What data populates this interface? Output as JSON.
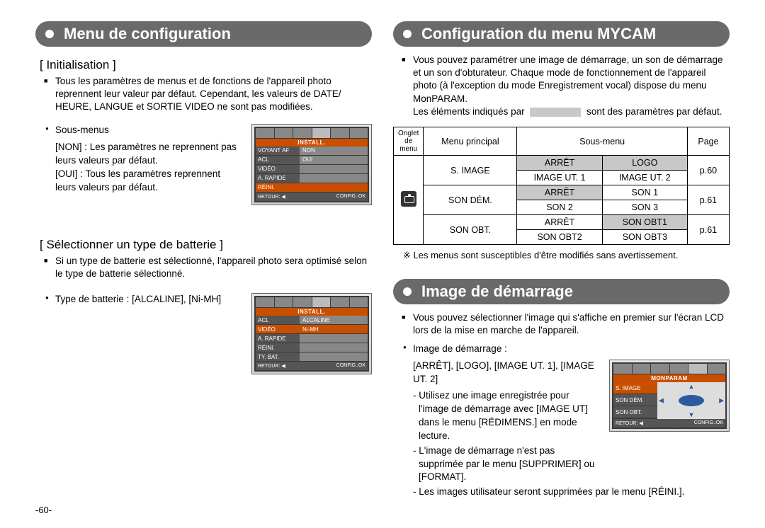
{
  "pageNumber": "-60-",
  "left": {
    "header": "Menu de configuration",
    "section1": {
      "title": "[ Initialisation ]",
      "intro": "Tous les paramètres de menus et de fonctions de l'appareil photo reprennent leur valeur par défaut. Cependant, les valeurs de DATE/ HEURE, LANGUE et SORTIE VIDEO ne sont pas modifiées.",
      "subLabel": "Sous-menus",
      "opt1": "[NON] : Les paramètres ne reprennent pas leurs valeurs par défaut.",
      "opt2": "[OUI]  : Tous les paramètres reprennent leurs valeurs par défaut.",
      "lcd": {
        "title": "INSTALL.",
        "rows": [
          {
            "label": "VOYANT AF",
            "val": "NON",
            "hl": false
          },
          {
            "label": "ACL",
            "val": "OUI",
            "hl": false
          },
          {
            "label": "VIDÉO",
            "val": "",
            "hl": false
          },
          {
            "label": "A. RAPIDE",
            "val": "",
            "hl": false
          },
          {
            "label": "RÉINI.",
            "val": "",
            "hl": true
          }
        ],
        "footerL": "RETOUR: ◀",
        "footerR": "CONFIG.:OK"
      }
    },
    "section2": {
      "title": "[ Sélectionner un type de batterie ]",
      "intro": "Si un type de batterie est sélectionné, l'appareil photo sera optimisé selon le type de batterie sélectionné.",
      "bullet": "Type de batterie : [ALCALINE], [Ni-MH]",
      "lcd": {
        "title": "INSTALL.",
        "rows": [
          {
            "label": "ACL",
            "val": "ALCALINE",
            "hl": false
          },
          {
            "label": "VIDÉO",
            "val": "Ni-MH",
            "hl": true
          },
          {
            "label": "A. RAPIDE",
            "val": "",
            "hl": false
          },
          {
            "label": "RÉINI.",
            "val": "",
            "hl": false
          },
          {
            "label": "TY. BAT.",
            "val": "",
            "hl": false
          }
        ],
        "footerL": "RETOUR: ◀",
        "footerR": "CONFIG.:OK"
      }
    }
  },
  "right": {
    "header1": "Configuration du menu MYCAM",
    "intro1a": "Vous pouvez paramétrer une image de démarrage, un son de démarrage et un son d'obturateur. Chaque mode de fonctionnement de l'appareil photo (à l'exception du mode Enregistrement vocal) dispose du menu MonPARAM.",
    "intro1b_before": "Les éléments indiqués par",
    "intro1b_after": "sont des paramètres par défaut.",
    "table": {
      "headers": {
        "c1": "Onglet de menu",
        "c2": "Menu principal",
        "c3": "Sous-menu",
        "c4": "Page"
      },
      "rows": [
        {
          "main": "S. IMAGE",
          "cells": [
            {
              "t": "ARRÊT",
              "s": true
            },
            {
              "t": "LOGO",
              "s": true
            }
          ],
          "page": "p.60"
        },
        {
          "main": "",
          "cells": [
            {
              "t": "IMAGE UT. 1",
              "s": false
            },
            {
              "t": "IMAGE UT. 2",
              "s": false
            }
          ],
          "page": ""
        },
        {
          "main": "SON DÉM.",
          "cells": [
            {
              "t": "ARRÊT",
              "s": true
            },
            {
              "t": "SON 1",
              "s": false
            }
          ],
          "page": "p.61"
        },
        {
          "main": "",
          "cells": [
            {
              "t": "SON 2",
              "s": false
            },
            {
              "t": "SON 3",
              "s": false
            }
          ],
          "page": ""
        },
        {
          "main": "SON OBT.",
          "cells": [
            {
              "t": "ARRÊT",
              "s": false
            },
            {
              "t": "SON OBT1",
              "s": true
            }
          ],
          "page": "p.61"
        },
        {
          "main": "",
          "cells": [
            {
              "t": "SON OBT2",
              "s": false
            },
            {
              "t": "SON OBT3",
              "s": false
            }
          ],
          "page": ""
        }
      ]
    },
    "note1": "※ Les menus sont susceptibles d'être modifiés sans avertissement.",
    "header2": "Image de démarrage",
    "intro2": "Vous pouvez sélectionner l'image qui s'affiche en premier sur l'écran LCD lors de la mise en marche de l'appareil.",
    "bullet2_label": "Image de démarrage :",
    "bullet2_opts": "[ARRÊT], [LOGO], [IMAGE UT. 1], [IMAGE UT. 2]",
    "dash1": "- Utilisez une image enregistrée pour l'image de démarrage avec [IMAGE UT] dans le menu [RÉDIMENS.] en mode lecture.",
    "dash2": "- L'image de démarrage n'est pas supprimée par le menu [SUPPRIMER] ou [FORMAT].",
    "dash3": "- Les images utilisateur seront supprimées par le menu [RÉINI.].",
    "lcd": {
      "title": "MONPARAM",
      "rows": [
        {
          "label": "S. IMAGE",
          "hl": true
        },
        {
          "label": "SON DÉM.",
          "hl": false
        },
        {
          "label": "SON OBT.",
          "hl": false
        }
      ],
      "footerL": "RETOUR: ◀",
      "footerR": "CONFIG.:OK"
    }
  }
}
